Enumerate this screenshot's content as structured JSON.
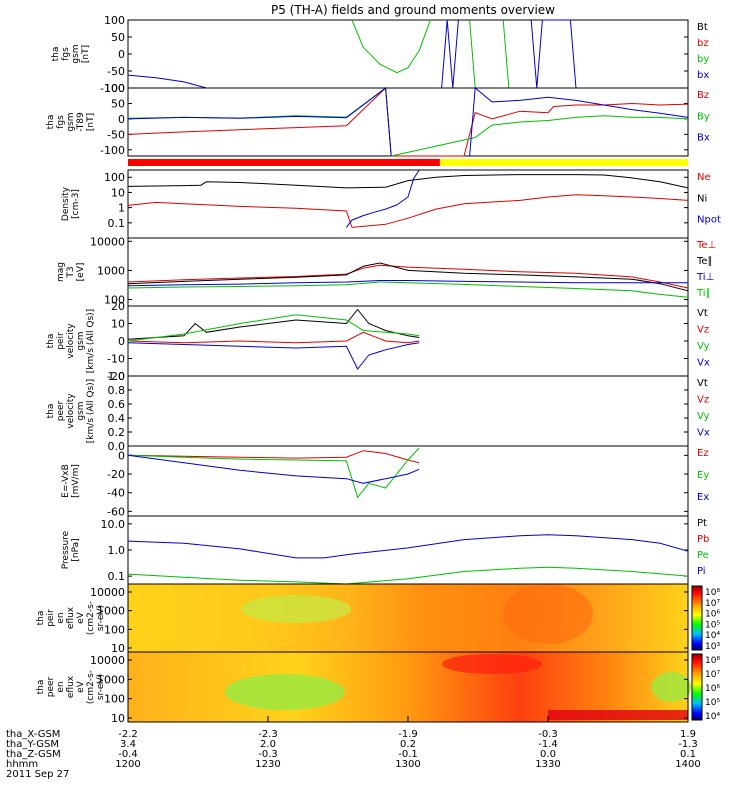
{
  "title": "P5 (TH-A) fields and ground moments overview",
  "colors": {
    "black": "#000000",
    "red": "#e00000",
    "green": "#00c000",
    "blue": "#0000d0",
    "mode_red": "#ff0000",
    "mode_yellow": "#ffff00"
  },
  "chart_data": [
    {
      "type": "line",
      "panel": "fgs_gsm",
      "ylabel_lines": [
        "tha",
        "fgs",
        "gsm",
        "[nT]"
      ],
      "ylim": [
        -100,
        100
      ],
      "yticks": [
        "100",
        "50",
        "0",
        "-50",
        "-100"
      ],
      "legend": [
        {
          "label": "Bt",
          "color": "black"
        },
        {
          "label": "bz",
          "color": "red"
        },
        {
          "label": "by",
          "color": "green"
        },
        {
          "label": "bx",
          "color": "blue"
        }
      ],
      "series": [
        {
          "name": "bx",
          "color": "blue",
          "x": [
            0,
            0.05,
            0.1,
            0.14,
            0.37,
            0.38,
            0.55,
            0.56,
            0.57,
            0.58,
            0.59,
            0.6,
            0.71,
            0.72,
            0.73,
            0.74,
            0.79,
            0.8
          ],
          "y": [
            -62,
            -70,
            -82,
            -100,
            null,
            100,
            null,
            -100,
            100,
            -100,
            100,
            null,
            null,
            100,
            -100,
            100,
            100,
            -100
          ]
        },
        {
          "name": "by",
          "color": "green",
          "x": [
            0.4,
            0.42,
            0.45,
            0.48,
            0.5,
            0.52,
            0.54,
            0.6,
            0.61,
            0.62,
            0.66,
            0.67,
            0.68
          ],
          "y": [
            100,
            20,
            -30,
            -55,
            -40,
            10,
            100,
            null,
            100,
            -100,
            null,
            100,
            -100
          ]
        }
      ]
    },
    {
      "type": "line",
      "panel": "fgs_gsm_t89",
      "ylabel_lines": [
        "tha",
        "fgs",
        "gsm",
        "-T89",
        "[nT]"
      ],
      "ylim": [
        -120,
        100
      ],
      "yticks": [
        "100",
        "50",
        "0",
        "-50",
        "-100"
      ],
      "legend": [
        {
          "label": "Bz",
          "color": "red"
        },
        {
          "label": "By",
          "color": "green"
        },
        {
          "label": "Bx",
          "color": "blue"
        }
      ],
      "series": [
        {
          "name": "Bz",
          "color": "red",
          "x": [
            0,
            0.1,
            0.2,
            0.3,
            0.39,
            0.46,
            0.47,
            0.6,
            0.62,
            0.65,
            0.7,
            0.75,
            0.76,
            0.8,
            0.85,
            0.9,
            0.95,
            1.0
          ],
          "y": [
            -50,
            -42,
            -35,
            -28,
            -22,
            100,
            -120,
            -120,
            20,
            0,
            25,
            20,
            40,
            45,
            45,
            50,
            45,
            48
          ]
        },
        {
          "name": "By",
          "color": "green",
          "x": [
            0,
            0.1,
            0.2,
            0.3,
            0.39,
            0.46,
            0.47,
            0.62,
            0.65,
            0.7,
            0.75,
            0.8,
            0.85,
            0.9,
            0.95,
            1.0
          ],
          "y": [
            2,
            5,
            3,
            10,
            6,
            100,
            -120,
            -60,
            -20,
            -10,
            -5,
            5,
            10,
            5,
            5,
            0
          ]
        },
        {
          "name": "Bx",
          "color": "blue",
          "x": [
            0,
            0.1,
            0.2,
            0.3,
            0.39,
            0.46,
            0.47,
            0.6,
            0.61,
            0.62,
            0.65,
            0.7,
            0.75,
            0.8,
            0.85,
            0.9,
            0.95,
            1.0
          ],
          "y": [
            0,
            5,
            2,
            8,
            4,
            100,
            -120,
            null,
            -120,
            100,
            55,
            60,
            70,
            60,
            45,
            30,
            18,
            5
          ]
        }
      ]
    },
    {
      "type": "line",
      "panel": "density",
      "ylabel_lines": [
        "Density",
        "[cm-3]"
      ],
      "scale": "log",
      "ylim": [
        0.01,
        300
      ],
      "yticks": [
        "100",
        "10",
        "1",
        "0.1"
      ],
      "legend": [
        {
          "label": "Ne",
          "color": "red"
        },
        {
          "label": "Ni",
          "color": "black"
        },
        {
          "label": "Npot",
          "color": "blue"
        }
      ],
      "series": [
        {
          "name": "Ni",
          "color": "black",
          "x": [
            0,
            0.1,
            0.13,
            0.14,
            0.2,
            0.3,
            0.39,
            0.46,
            0.5,
            0.55,
            0.6,
            0.7,
            0.8,
            0.85,
            0.9,
            0.95,
            1.0
          ],
          "y": [
            25,
            28,
            30,
            50,
            45,
            30,
            20,
            22,
            60,
            100,
            130,
            150,
            150,
            140,
            90,
            50,
            20
          ]
        },
        {
          "name": "Ne",
          "color": "red",
          "x": [
            0,
            0.05,
            0.1,
            0.2,
            0.3,
            0.39,
            0.4,
            0.46,
            0.5,
            0.55,
            0.6,
            0.7,
            0.75,
            0.8,
            0.85,
            0.9,
            0.95,
            1.0
          ],
          "y": [
            1.4,
            2.2,
            1.8,
            1.2,
            0.9,
            0.6,
            0.05,
            0.08,
            0.2,
            0.8,
            1.8,
            3,
            5,
            7,
            6,
            5,
            4,
            3
          ]
        },
        {
          "name": "Npot",
          "color": "blue",
          "x": [
            0.39,
            0.4,
            0.42,
            0.44,
            0.46,
            0.48,
            0.5,
            0.51,
            0.52
          ],
          "y": [
            0.05,
            0.15,
            0.3,
            0.5,
            0.8,
            1.5,
            5,
            80,
            300
          ]
        }
      ]
    },
    {
      "type": "line",
      "panel": "temperature",
      "ylabel_lines": [
        "mag",
        "T3",
        "[eV]"
      ],
      "scale": "log",
      "ylim": [
        60,
        13000
      ],
      "yticks": [
        "10000",
        "1000",
        "100"
      ],
      "legend": [
        {
          "label": "Te⊥",
          "color": "red"
        },
        {
          "label": "Te∥",
          "color": "black"
        },
        {
          "label": "Ti⊥",
          "color": "blue"
        },
        {
          "label": "Ti∥",
          "color": "green"
        }
      ],
      "series": [
        {
          "name": "Te⊥",
          "color": "red",
          "x": [
            0,
            0.1,
            0.2,
            0.3,
            0.39,
            0.42,
            0.45,
            0.5,
            0.6,
            0.7,
            0.8,
            0.9,
            0.95,
            1.0
          ],
          "y": [
            400,
            480,
            550,
            620,
            750,
            1200,
            1500,
            1300,
            1100,
            900,
            800,
            600,
            400,
            250
          ]
        },
        {
          "name": "Te∥",
          "color": "black",
          "x": [
            0,
            0.1,
            0.2,
            0.3,
            0.39,
            0.42,
            0.45,
            0.5,
            0.6,
            0.7,
            0.8,
            0.9,
            0.95,
            1.0
          ],
          "y": [
            350,
            420,
            500,
            580,
            700,
            1400,
            1800,
            1000,
            800,
            700,
            600,
            500,
            350,
            200
          ]
        },
        {
          "name": "Ti⊥",
          "color": "blue",
          "x": [
            0,
            0.1,
            0.2,
            0.3,
            0.39,
            0.45,
            0.5,
            0.6,
            0.7,
            0.8,
            0.9,
            1.0
          ],
          "y": [
            300,
            320,
            340,
            380,
            400,
            450,
            450,
            420,
            400,
            380,
            380,
            380
          ]
        },
        {
          "name": "Ti∥",
          "color": "green",
          "x": [
            0,
            0.1,
            0.2,
            0.3,
            0.39,
            0.45,
            0.5,
            0.6,
            0.7,
            0.8,
            0.9,
            0.95,
            1.0
          ],
          "y": [
            250,
            270,
            280,
            300,
            320,
            400,
            380,
            330,
            280,
            240,
            200,
            150,
            120
          ]
        }
      ]
    },
    {
      "type": "line",
      "panel": "peir_velocity",
      "ylabel_lines": [
        "tha",
        "peir",
        "velocity",
        "gsm",
        "[km/s (All Qs)]"
      ],
      "ylim": [
        -20,
        20
      ],
      "yticks": [
        "20",
        "10",
        "0",
        "-10",
        "-20"
      ],
      "legend": [
        {
          "label": "Vt",
          "color": "black"
        },
        {
          "label": "Vz",
          "color": "red"
        },
        {
          "label": "Vy",
          "color": "green"
        },
        {
          "label": "Vx",
          "color": "blue"
        }
      ],
      "series": [
        {
          "name": "Vt",
          "color": "black",
          "x": [
            0,
            0.1,
            0.12,
            0.14,
            0.2,
            0.3,
            0.39,
            0.41,
            0.43,
            0.46,
            0.5,
            0.52
          ],
          "y": [
            1,
            3,
            10,
            5,
            8,
            12,
            10,
            18,
            10,
            6,
            3,
            2
          ]
        },
        {
          "name": "Vz",
          "color": "red",
          "x": [
            0,
            0.1,
            0.2,
            0.3,
            0.39,
            0.42,
            0.46,
            0.5,
            0.52
          ],
          "y": [
            0,
            -1,
            0,
            -1,
            0,
            5,
            0,
            -1,
            0
          ]
        },
        {
          "name": "Vy",
          "color": "green",
          "x": [
            0,
            0.1,
            0.2,
            0.3,
            0.39,
            0.42,
            0.46,
            0.5,
            0.52
          ],
          "y": [
            0,
            4,
            10,
            15,
            12,
            6,
            5,
            4,
            3
          ]
        },
        {
          "name": "Vx",
          "color": "blue",
          "x": [
            0,
            0.1,
            0.2,
            0.3,
            0.39,
            0.41,
            0.43,
            0.46,
            0.5,
            0.52
          ],
          "y": [
            -1,
            -2,
            -3,
            -4,
            -3,
            -16,
            -8,
            -5,
            -2,
            -1
          ]
        }
      ]
    },
    {
      "type": "line",
      "panel": "peer_velocity",
      "ylabel_lines": [
        "tha",
        "peer",
        "velocity",
        "gsm",
        "[km/s (All Qs)]"
      ],
      "ylim": [
        0,
        1
      ],
      "yticks": [
        "1.0",
        "0.8",
        "0.6",
        "0.4",
        "0.2",
        "0.0"
      ],
      "legend": [
        {
          "label": "Vt",
          "color": "black"
        },
        {
          "label": "Vz",
          "color": "red"
        },
        {
          "label": "Vy",
          "color": "green"
        },
        {
          "label": "Vx",
          "color": "blue"
        }
      ],
      "series": []
    },
    {
      "type": "line",
      "panel": "efield",
      "ylabel_lines": [
        "E=-VxB",
        "[mV/m]"
      ],
      "ylim": [
        -65,
        10
      ],
      "yticks": [
        "0",
        "-20",
        "-40",
        "-60"
      ],
      "legend": [
        {
          "label": "Ez",
          "color": "red"
        },
        {
          "label": "Ey",
          "color": "green"
        },
        {
          "label": "Ex",
          "color": "blue"
        }
      ],
      "series": [
        {
          "name": "Ez",
          "color": "red",
          "x": [
            0,
            0.1,
            0.2,
            0.3,
            0.39,
            0.42,
            0.46,
            0.5,
            0.52
          ],
          "y": [
            0,
            -1,
            -2,
            -3,
            -2,
            5,
            2,
            -5,
            -8
          ]
        },
        {
          "name": "Ey",
          "color": "green",
          "x": [
            0,
            0.1,
            0.2,
            0.3,
            0.39,
            0.41,
            0.43,
            0.46,
            0.5,
            0.52
          ],
          "y": [
            0,
            -2,
            -4,
            -5,
            -6,
            -45,
            -30,
            -35,
            -5,
            8
          ]
        },
        {
          "name": "Ex",
          "color": "blue",
          "x": [
            0,
            0.1,
            0.2,
            0.3,
            0.39,
            0.42,
            0.46,
            0.5,
            0.52
          ],
          "y": [
            0,
            -8,
            -16,
            -22,
            -25,
            -30,
            -25,
            -20,
            -15
          ]
        }
      ]
    },
    {
      "type": "line",
      "panel": "pressure",
      "ylabel_lines": [
        "Pressure",
        "[nPa]"
      ],
      "scale": "log",
      "ylim": [
        0.05,
        20
      ],
      "yticks": [
        "10.0",
        "1.0",
        "0.1"
      ],
      "legend": [
        {
          "label": "Pt",
          "color": "black"
        },
        {
          "label": "Pb",
          "color": "red"
        },
        {
          "label": "Pe",
          "color": "green"
        },
        {
          "label": "Pi",
          "color": "blue"
        }
      ],
      "series": [
        {
          "name": "Pi",
          "color": "blue",
          "x": [
            0,
            0.1,
            0.2,
            0.3,
            0.35,
            0.4,
            0.5,
            0.6,
            0.7,
            0.75,
            0.8,
            0.9,
            0.95,
            1.0
          ],
          "y": [
            2.2,
            1.8,
            1.1,
            0.5,
            0.5,
            0.7,
            1.2,
            2.5,
            3.5,
            3.8,
            3.5,
            2.5,
            1.8,
            0.9
          ]
        },
        {
          "name": "Pe",
          "color": "green",
          "x": [
            0,
            0.1,
            0.2,
            0.3,
            0.39,
            0.5,
            0.6,
            0.7,
            0.75,
            0.8,
            0.9,
            1.0
          ],
          "y": [
            0.12,
            0.09,
            0.07,
            0.06,
            0.05,
            0.08,
            0.15,
            0.2,
            0.22,
            0.2,
            0.15,
            0.1
          ]
        }
      ]
    },
    {
      "type": "heatmap",
      "panel": "peir_eflux",
      "ylabel_lines": [
        "tha",
        "peir",
        "en",
        "eflux",
        "eV",
        "(cm2-s-",
        "sr-eV)"
      ],
      "yticks": [
        "10000",
        "1000",
        "100",
        "10"
      ],
      "colorbar_ticks": [
        "10⁸",
        "10⁷",
        "10⁶",
        "10⁵",
        "10⁴",
        "10³"
      ]
    },
    {
      "type": "heatmap",
      "panel": "peer_eflux",
      "ylabel_lines": [
        "tha",
        "peer",
        "en",
        "eflux",
        "eV",
        "(cm2-s-",
        "sr-eV)"
      ],
      "yticks": [
        "10000",
        "1000",
        "100",
        "10"
      ],
      "colorbar_ticks": [
        "10⁸",
        "10⁷",
        "10⁶",
        "10⁵",
        "10⁴"
      ]
    }
  ],
  "xaxis": {
    "rows": [
      {
        "label": "tha_X-GSM",
        "values": [
          "-2.2",
          "-2.3",
          "-1.9",
          "-0.3",
          "1.9"
        ]
      },
      {
        "label": "tha_Y-GSM",
        "values": [
          "3.4",
          "2.0",
          "0.2",
          "-1.4",
          "-1.3"
        ]
      },
      {
        "label": "tha_Z-GSM",
        "values": [
          "-0.4",
          "-0.3",
          "-0.1",
          "0.0",
          "0.1"
        ]
      },
      {
        "label": "hhmm",
        "values": [
          "1200",
          "1230",
          "1300",
          "1330",
          "1400"
        ]
      }
    ],
    "date": "2011 Sep 27"
  }
}
